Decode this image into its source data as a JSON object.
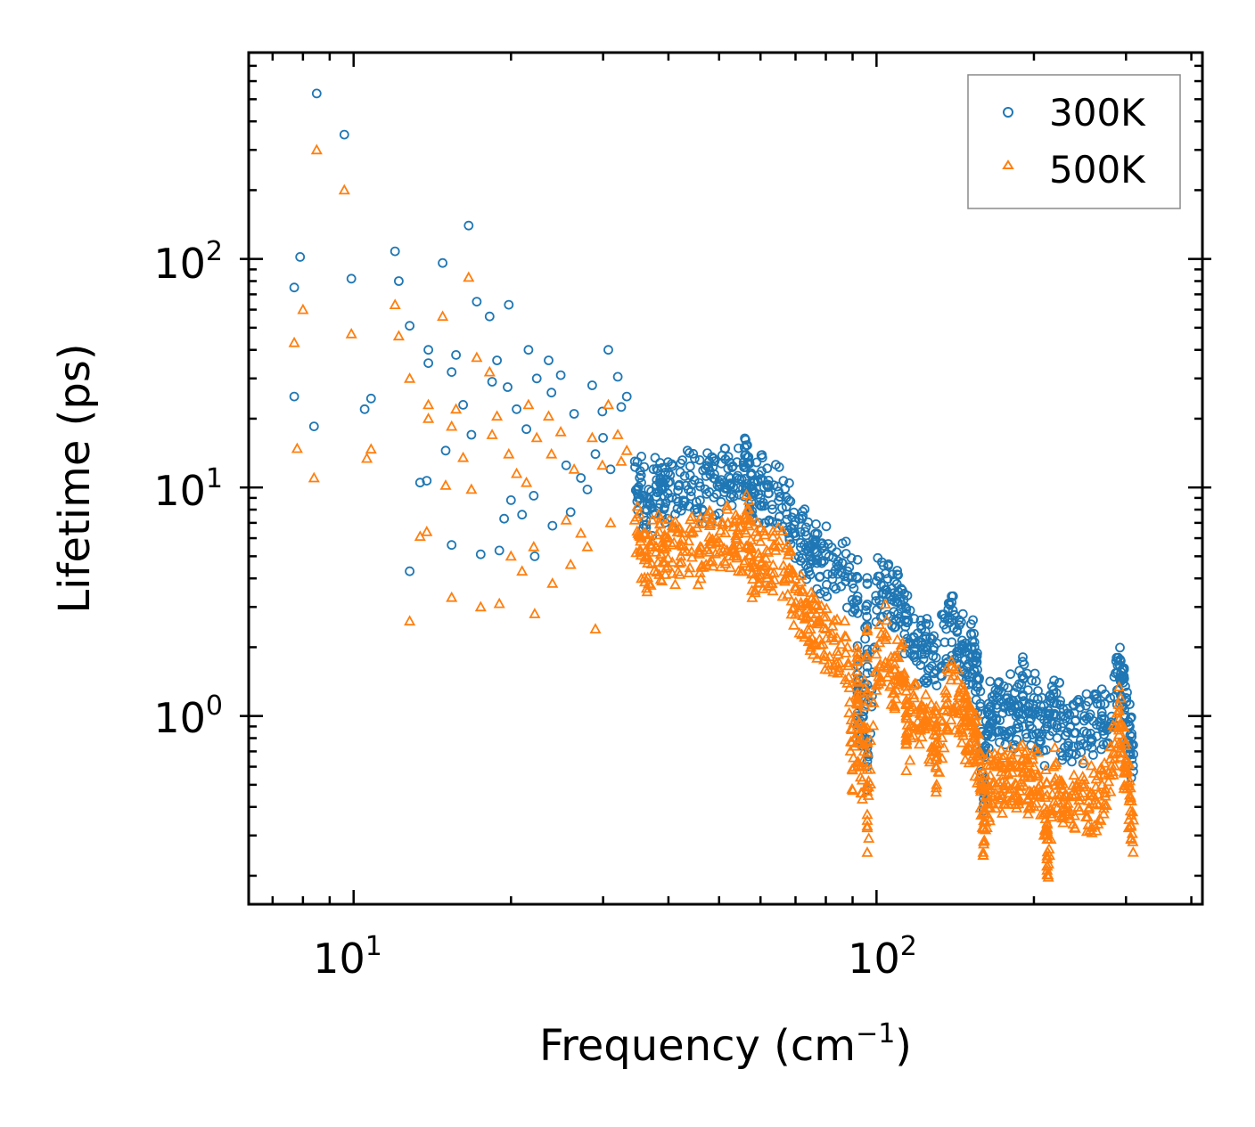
{
  "chart_data": {
    "type": "scatter",
    "xscale": "log",
    "yscale": "log",
    "xlim": [
      6.3,
      420
    ],
    "ylim": [
      0.15,
      800
    ],
    "xlabel": "Frequency (cm",
    "xlabel_sup": "−1",
    "xlabel_tail": ")",
    "ylabel": "Lifetime (ps)",
    "x_ticks": [
      {
        "base": "10",
        "exp": "1",
        "value": 10
      },
      {
        "base": "10",
        "exp": "2",
        "value": 100
      }
    ],
    "y_ticks": [
      {
        "base": "10",
        "exp": "0",
        "value": 1
      },
      {
        "base": "10",
        "exp": "1",
        "value": 10
      },
      {
        "base": "10",
        "exp": "2",
        "value": 100
      }
    ],
    "legend_location": "top-right",
    "series": [
      {
        "name": "300K",
        "marker": "circle",
        "color": "#1f77b4",
        "points": [
          [
            8.5,
            530
          ],
          [
            9.6,
            350
          ],
          [
            7.9,
            102
          ],
          [
            7.7,
            75
          ],
          [
            9.9,
            82
          ],
          [
            7.7,
            25
          ],
          [
            8.4,
            18.5
          ],
          [
            10.5,
            22
          ],
          [
            10.8,
            24.5
          ],
          [
            12.0,
            108
          ],
          [
            12.2,
            80
          ],
          [
            12.8,
            51
          ],
          [
            13.9,
            40
          ],
          [
            13.9,
            35
          ],
          [
            14.8,
            96
          ],
          [
            13.4,
            10.5
          ],
          [
            13.8,
            10.7
          ],
          [
            12.8,
            4.3
          ],
          [
            15.0,
            14.5
          ],
          [
            15.4,
            5.6
          ],
          [
            15.4,
            32
          ],
          [
            15.7,
            38
          ],
          [
            16.2,
            23
          ],
          [
            16.6,
            140
          ],
          [
            16.8,
            17
          ],
          [
            17.2,
            65
          ],
          [
            17.5,
            5.1
          ],
          [
            18.2,
            56
          ],
          [
            18.4,
            29
          ],
          [
            18.8,
            36
          ],
          [
            19.0,
            5.3
          ],
          [
            19.8,
            63
          ],
          [
            19.7,
            27.5
          ],
          [
            20.5,
            22
          ],
          [
            21.6,
            40
          ],
          [
            21.4,
            18
          ],
          [
            22.4,
            30
          ],
          [
            23.6,
            36
          ],
          [
            22.1,
            9.2
          ],
          [
            23.9,
            26
          ],
          [
            24.9,
            31
          ],
          [
            25.5,
            12.5
          ],
          [
            26.4,
            21
          ],
          [
            27.2,
            11
          ],
          [
            28.6,
            28
          ],
          [
            29.9,
            21.5
          ],
          [
            30.7,
            40
          ],
          [
            32.0,
            30.5
          ],
          [
            32.5,
            22.5
          ],
          [
            33.3,
            25
          ],
          [
            30.0,
            16.5
          ],
          [
            20.0,
            8.8
          ],
          [
            21.0,
            7.6
          ],
          [
            19.4,
            7.3
          ],
          [
            22.2,
            5.0
          ],
          [
            24.0,
            6.8
          ],
          [
            26.0,
            7.8
          ],
          [
            28.0,
            9.8
          ],
          [
            29.0,
            14
          ],
          [
            31.0,
            12
          ],
          [
            34.5,
            13
          ],
          [
            35.5,
            10.5
          ],
          [
            36.5,
            9
          ],
          [
            38,
            10.8
          ],
          [
            39,
            9.8
          ],
          [
            40,
            10.5
          ],
          [
            42,
            10.2
          ],
          [
            44,
            11.3
          ],
          [
            46,
            10.1
          ],
          [
            48,
            11.8
          ],
          [
            50,
            10.6
          ],
          [
            52,
            12.1
          ],
          [
            54,
            11.0
          ],
          [
            56,
            13.8
          ],
          [
            57,
            12.8
          ],
          [
            58,
            9.8
          ],
          [
            60,
            10.9
          ],
          [
            62,
            10.3
          ],
          [
            65,
            9.6
          ],
          [
            68,
            8.8
          ],
          [
            70,
            7.1
          ],
          [
            73,
            6.4
          ],
          [
            75,
            5.6
          ],
          [
            77,
            5.2
          ],
          [
            80,
            5.1
          ],
          [
            84,
            4.6
          ],
          [
            88,
            4.3
          ],
          [
            92,
            4.0
          ],
          [
            96,
            3.8
          ],
          [
            100,
            3.9
          ],
          [
            104,
            4.2
          ],
          [
            108,
            3.3
          ],
          [
            110,
            3.5
          ],
          [
            114,
            2.8
          ],
          [
            118,
            2.2
          ],
          [
            122,
            2.1
          ],
          [
            125,
            2.0
          ],
          [
            130,
            1.8
          ],
          [
            136,
            2.4
          ],
          [
            140,
            2.9
          ],
          [
            144,
            2.5
          ],
          [
            148,
            1.9
          ],
          [
            152,
            2.0
          ],
          [
            155,
            1.8
          ],
          [
            158,
            1.1
          ],
          [
            162,
            0.95
          ],
          [
            165,
            1.1
          ],
          [
            170,
            1.2
          ],
          [
            175,
            1.1
          ],
          [
            180,
            1.15
          ],
          [
            185,
            1.0
          ],
          [
            190,
            1.5
          ],
          [
            195,
            1.1
          ],
          [
            200,
            1.2
          ],
          [
            206,
            1.0
          ],
          [
            212,
            0.9
          ],
          [
            218,
            1.3
          ],
          [
            225,
            1.0
          ],
          [
            232,
            0.85
          ],
          [
            240,
            0.95
          ],
          [
            250,
            1.0
          ],
          [
            260,
            0.95
          ],
          [
            270,
            1.0
          ],
          [
            280,
            1.2
          ],
          [
            290,
            1.8
          ],
          [
            295,
            1.6
          ],
          [
            300,
            1.2
          ],
          [
            305,
            0.9
          ],
          [
            310,
            0.68
          ],
          [
            160,
            0.52
          ],
          [
            96,
            0.6
          ],
          [
            94,
            1.0
          ],
          [
            92,
            1.3
          ]
        ]
      },
      {
        "name": "500K",
        "marker": "triangle",
        "color": "#ff7f0e",
        "points": [
          [
            8.5,
            300
          ],
          [
            9.6,
            200
          ],
          [
            7.7,
            43
          ],
          [
            8.0,
            60
          ],
          [
            9.9,
            47
          ],
          [
            7.8,
            14.8
          ],
          [
            8.4,
            11
          ],
          [
            10.6,
            13.4
          ],
          [
            10.8,
            14.7
          ],
          [
            12.0,
            63
          ],
          [
            12.2,
            46
          ],
          [
            12.8,
            30
          ],
          [
            13.9,
            23
          ],
          [
            13.9,
            20
          ],
          [
            14.8,
            56
          ],
          [
            13.4,
            6.1
          ],
          [
            13.8,
            6.4
          ],
          [
            12.8,
            2.6
          ],
          [
            15.0,
            10.2
          ],
          [
            15.4,
            3.3
          ],
          [
            15.4,
            18.5
          ],
          [
            15.7,
            22
          ],
          [
            16.2,
            13.5
          ],
          [
            16.6,
            83
          ],
          [
            16.8,
            9.8
          ],
          [
            17.2,
            37
          ],
          [
            17.5,
            3.0
          ],
          [
            18.2,
            32
          ],
          [
            18.4,
            17
          ],
          [
            18.8,
            20.5
          ],
          [
            19.0,
            3.1
          ],
          [
            19.8,
            14
          ],
          [
            20.5,
            11.5
          ],
          [
            21.6,
            23
          ],
          [
            21.4,
            10.5
          ],
          [
            22.4,
            16.5
          ],
          [
            23.6,
            20.5
          ],
          [
            22.1,
            5.5
          ],
          [
            23.9,
            14
          ],
          [
            24.9,
            17.5
          ],
          [
            25.5,
            7.2
          ],
          [
            26.4,
            12
          ],
          [
            27.2,
            6.3
          ],
          [
            28.6,
            16.5
          ],
          [
            29.9,
            12.5
          ],
          [
            30.7,
            23
          ],
          [
            32.0,
            17
          ],
          [
            32.5,
            13
          ],
          [
            33.3,
            14.5
          ],
          [
            20.0,
            5.0
          ],
          [
            21.0,
            4.3
          ],
          [
            22.2,
            2.8
          ],
          [
            24.0,
            3.8
          ],
          [
            26.0,
            4.6
          ],
          [
            28.0,
            5.5
          ],
          [
            29.0,
            2.4
          ],
          [
            31.0,
            7.0
          ],
          [
            34.5,
            7.2
          ],
          [
            35.5,
            6.0
          ],
          [
            36.5,
            5.0
          ],
          [
            38,
            6.2
          ],
          [
            39,
            5.5
          ],
          [
            40,
            6.0
          ],
          [
            42,
            5.6
          ],
          [
            44,
            6.6
          ],
          [
            46,
            5.5
          ],
          [
            48,
            6.8
          ],
          [
            50,
            5.8
          ],
          [
            52,
            7.0
          ],
          [
            54,
            5.9
          ],
          [
            56,
            6.5
          ],
          [
            57,
            7.2
          ],
          [
            58,
            4.7
          ],
          [
            60,
            5.8
          ],
          [
            62,
            5.2
          ],
          [
            65,
            5.5
          ],
          [
            68,
            4.4
          ],
          [
            70,
            3.6
          ],
          [
            73,
            3.1
          ],
          [
            75,
            2.8
          ],
          [
            77,
            2.6
          ],
          [
            80,
            2.4
          ],
          [
            84,
            2.2
          ],
          [
            88,
            2.0
          ],
          [
            92,
            1.9
          ],
          [
            96,
            2.4
          ],
          [
            100,
            2.0
          ],
          [
            104,
            2.3
          ],
          [
            108,
            1.6
          ],
          [
            110,
            1.8
          ],
          [
            114,
            1.4
          ],
          [
            118,
            1.2
          ],
          [
            122,
            1.1
          ],
          [
            125,
            1.0
          ],
          [
            130,
            0.9
          ],
          [
            136,
            1.2
          ],
          [
            140,
            1.5
          ],
          [
            144,
            1.2
          ],
          [
            148,
            0.95
          ],
          [
            152,
            0.9
          ],
          [
            155,
            0.85
          ],
          [
            158,
            0.6
          ],
          [
            162,
            0.5
          ],
          [
            165,
            0.55
          ],
          [
            170,
            0.6
          ],
          [
            175,
            0.55
          ],
          [
            180,
            0.6
          ],
          [
            185,
            0.5
          ],
          [
            190,
            0.75
          ],
          [
            195,
            0.55
          ],
          [
            200,
            0.6
          ],
          [
            206,
            0.5
          ],
          [
            212,
            0.45
          ],
          [
            218,
            0.6
          ],
          [
            225,
            0.5
          ],
          [
            232,
            0.4
          ],
          [
            240,
            0.45
          ],
          [
            250,
            0.5
          ],
          [
            260,
            0.45
          ],
          [
            270,
            0.5
          ],
          [
            280,
            0.65
          ],
          [
            290,
            1.05
          ],
          [
            295,
            0.9
          ],
          [
            300,
            0.65
          ],
          [
            305,
            0.45
          ],
          [
            310,
            0.35
          ],
          [
            160,
            0.32
          ],
          [
            96,
            0.33
          ],
          [
            94,
            0.6
          ],
          [
            92,
            0.9
          ],
          [
            212,
            0.22
          ],
          [
            90,
            0.58
          ],
          [
            114,
            0.75
          ],
          [
            130,
            0.7
          ],
          [
            150,
            0.9
          ]
        ]
      }
    ]
  }
}
